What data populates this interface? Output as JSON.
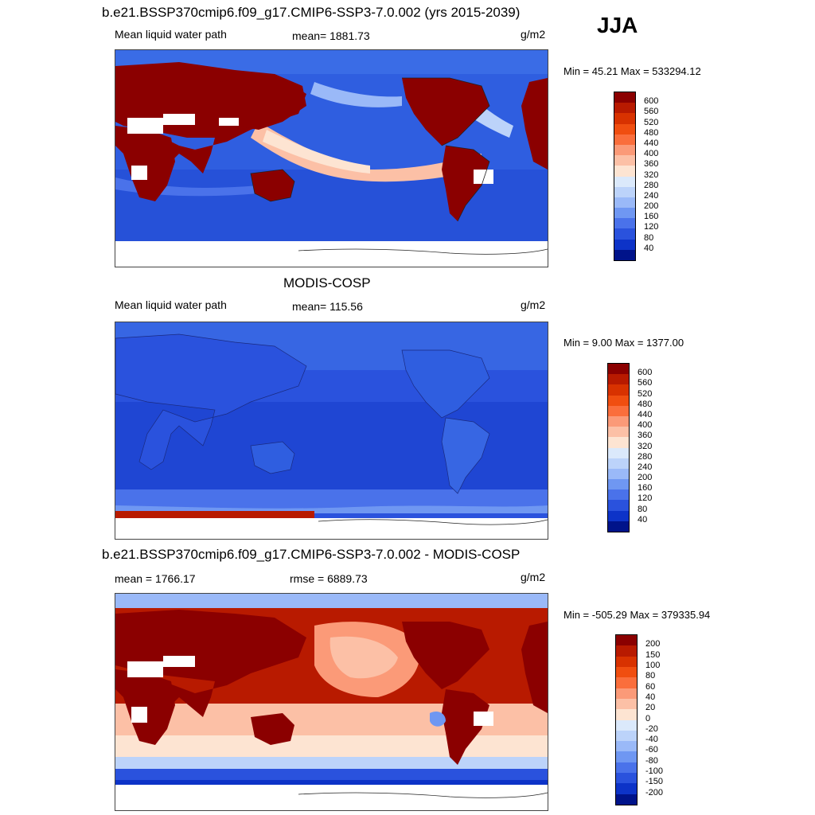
{
  "season": "JJA",
  "panels": [
    {
      "title": "b.e21.BSSP370cmip6.f09_g17.CMIP6-SSP3-7.0.002 (yrs 2015-2039)",
      "left": "Mean liquid water path",
      "center": "mean= 1881.73",
      "units": "g/m2",
      "minmax": "Min =  45.21 Max = 533294.12",
      "colorbar": {
        "labels": [
          "600",
          "560",
          "520",
          "480",
          "440",
          "400",
          "360",
          "320",
          "280",
          "240",
          "200",
          "160",
          "120",
          "80",
          "40"
        ],
        "colors": [
          "#8b0000",
          "#b81a00",
          "#d83200",
          "#f04e10",
          "#fa6e3c",
          "#fb9a78",
          "#fcc0a6",
          "#fde4d2",
          "#dbe9fb",
          "#bcd3fa",
          "#9ab9f8",
          "#6f97f2",
          "#4a72ea",
          "#2a52dd",
          "#0d33c8",
          "#00138a"
        ]
      }
    },
    {
      "title": "MODIS-COSP",
      "left": "Mean liquid water path",
      "center": "mean= 115.56",
      "units": "g/m2",
      "minmax": "Min =   9.00 Max = 1377.00",
      "colorbar": {
        "labels": [
          "600",
          "560",
          "520",
          "480",
          "440",
          "400",
          "360",
          "320",
          "280",
          "240",
          "200",
          "160",
          "120",
          "80",
          "40"
        ],
        "colors": [
          "#8b0000",
          "#b81a00",
          "#d83200",
          "#f04e10",
          "#fa6e3c",
          "#fb9a78",
          "#fcc0a6",
          "#fde4d2",
          "#dbe9fb",
          "#bcd3fa",
          "#9ab9f8",
          "#6f97f2",
          "#4a72ea",
          "#2a52dd",
          "#0d33c8",
          "#00138a"
        ]
      }
    },
    {
      "title": "b.e21.BSSP370cmip6.f09_g17.CMIP6-SSP3-7.0.002 - MODIS-COSP",
      "left": "mean = 1766.17",
      "center": "rmse = 6889.73",
      "units": "g/m2",
      "minmax": "Min = -505.29 Max = 379335.94",
      "colorbar": {
        "labels": [
          "200",
          "150",
          "100",
          "80",
          "60",
          "40",
          "20",
          "0",
          "-20",
          "-40",
          "-60",
          "-80",
          "-100",
          "-150",
          "-200"
        ],
        "colors": [
          "#8b0000",
          "#b81a00",
          "#d83200",
          "#f04e10",
          "#fa6e3c",
          "#fb9a78",
          "#fcc0a6",
          "#fde4d2",
          "#dbe9fb",
          "#bcd3fa",
          "#9ab9f8",
          "#6f97f2",
          "#4a72ea",
          "#2a52dd",
          "#0d33c8",
          "#00138a"
        ]
      }
    }
  ]
}
